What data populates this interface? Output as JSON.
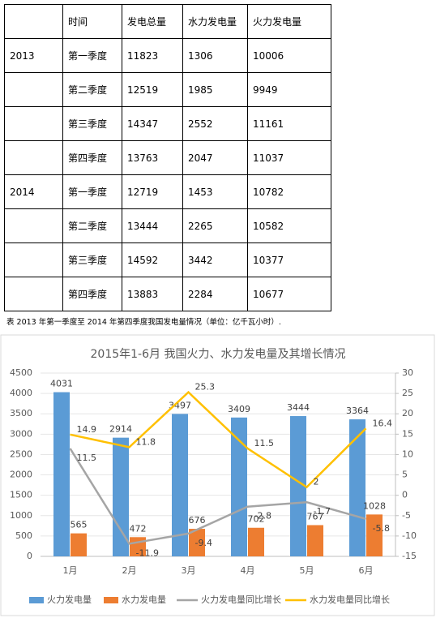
{
  "table": {
    "header": [
      "时间",
      "发电总量",
      "水力发电量",
      "火力发电量"
    ],
    "rows": [
      [
        "2013",
        "第一季度",
        "11823",
        "1306",
        "10006"
      ],
      [
        null,
        "第二季度",
        "12519",
        "1985",
        "9949"
      ],
      [
        null,
        "第三季度",
        "14347",
        "2552",
        "11161"
      ],
      [
        null,
        "第四季度",
        "13763",
        "2047",
        "11037"
      ],
      [
        "2014",
        "第一季度",
        "12719",
        "1453",
        "10782"
      ],
      [
        null,
        "第二季度",
        "13444",
        "2265",
        "10582"
      ],
      [
        null,
        "第三季度",
        "14592",
        "3442",
        "10377"
      ],
      [
        null,
        "第四季度",
        "13883",
        "2284",
        "10677"
      ]
    ]
  },
  "caption": "表 2013 年第一季度至 2014 年第四季度我国发电量情况（单位：亿千瓦小时）.",
  "chart_data": {
    "type": "bar-line",
    "title": "2015年1-6月 我国火力、水力发电量及其增长情况",
    "categories": [
      "1月",
      "2月",
      "3月",
      "4月",
      "5月",
      "6月"
    ],
    "series": [
      {
        "name": "火力发电量",
        "color": "#5b9bd5",
        "type": "bar",
        "values": [
          4031,
          2914,
          3497,
          3409,
          3444,
          3364
        ]
      },
      {
        "name": "水力发电量",
        "color": "#ed7d31",
        "type": "bar",
        "values": [
          565,
          472,
          676,
          702,
          767,
          1028
        ]
      },
      {
        "name": "火力发电量同比增长",
        "color": "#a5a5a5",
        "type": "line",
        "axis": "y2",
        "values": [
          11.5,
          -11.9,
          -9.4,
          -2.8,
          -1.7,
          -5.8
        ]
      },
      {
        "name": "水力发电量同比增长",
        "color": "#ffc000",
        "type": "line",
        "axis": "y2",
        "values": [
          14.9,
          11.8,
          25.3,
          11.5,
          2,
          16.4
        ]
      }
    ],
    "ylim": [
      0,
      4500
    ],
    "yticks": [
      0,
      500,
      1000,
      1500,
      2000,
      2500,
      3000,
      3500,
      4000,
      4500
    ],
    "y2lim": [
      -15,
      30
    ],
    "y2ticks": [
      -15,
      -10,
      -5,
      0,
      5,
      10,
      15,
      20,
      25,
      30
    ],
    "grid": true,
    "legend": "bottom"
  }
}
